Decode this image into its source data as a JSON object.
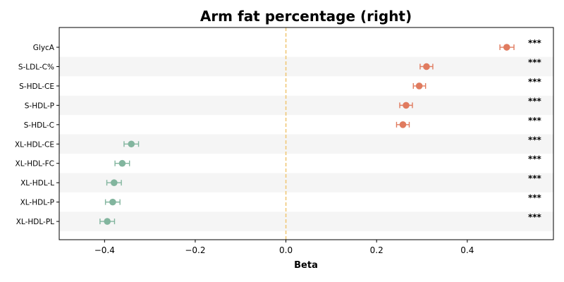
{
  "chart_data": {
    "type": "scatter",
    "title": "Arm fat percentage (right)",
    "xlabel": "Beta",
    "ylabel": "",
    "xlim": [
      -0.5,
      0.59
    ],
    "xticks": [
      -0.4,
      -0.2,
      0.0,
      0.2,
      0.4
    ],
    "xtick_labels": [
      "−0.4",
      "−0.2",
      "0.0",
      "0.2",
      "0.4"
    ],
    "reference_line": 0.0,
    "grid": false,
    "colors": {
      "positive": "#E07B5F",
      "negative": "#82B59E",
      "reference": "#F0C878",
      "band": "#F5F5F5"
    },
    "points": [
      {
        "label": "GlycA",
        "beta": 0.487,
        "ci": [
          0.472,
          0.503
        ],
        "sig": "***"
      },
      {
        "label": "S-LDL-C%",
        "beta": 0.31,
        "ci": [
          0.296,
          0.324
        ],
        "sig": "***"
      },
      {
        "label": "S-HDL-CE",
        "beta": 0.294,
        "ci": [
          0.281,
          0.308
        ],
        "sig": "***"
      },
      {
        "label": "S-HDL-P",
        "beta": 0.265,
        "ci": [
          0.251,
          0.279
        ],
        "sig": "***"
      },
      {
        "label": "S-HDL-C",
        "beta": 0.258,
        "ci": [
          0.244,
          0.272
        ],
        "sig": "***"
      },
      {
        "label": "XL-HDL-CE",
        "beta": -0.341,
        "ci": [
          -0.357,
          -0.325
        ],
        "sig": "***"
      },
      {
        "label": "XL-HDL-FC",
        "beta": -0.361,
        "ci": [
          -0.377,
          -0.345
        ],
        "sig": "***"
      },
      {
        "label": "XL-HDL-L",
        "beta": -0.379,
        "ci": [
          -0.395,
          -0.363
        ],
        "sig": "***"
      },
      {
        "label": "XL-HDL-P",
        "beta": -0.382,
        "ci": [
          -0.398,
          -0.366
        ],
        "sig": "***"
      },
      {
        "label": "XL-HDL-PL",
        "beta": -0.394,
        "ci": [
          -0.41,
          -0.378
        ],
        "sig": "***"
      }
    ]
  }
}
